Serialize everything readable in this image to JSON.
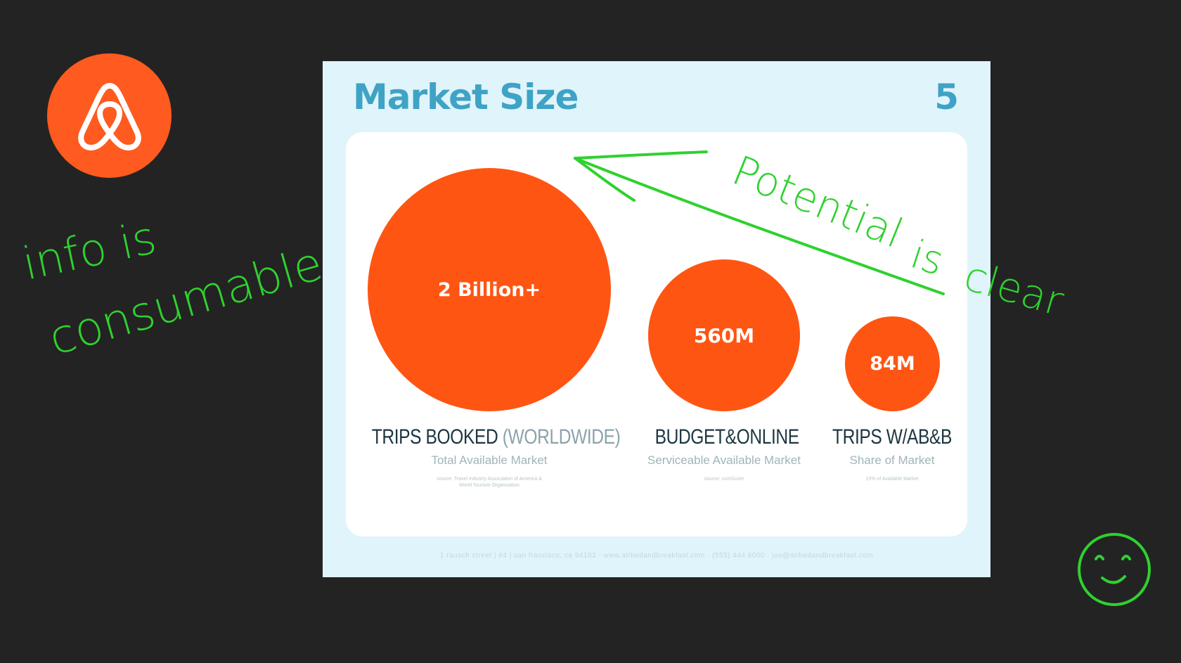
{
  "logo": {
    "icon": "airbnb-belo-icon",
    "color": "#ff5a1f"
  },
  "annotations": {
    "left_note_line1": "info is",
    "left_note_line2": "consumable",
    "arrow_note_word1": "Potential",
    "arrow_note_word2": "is",
    "arrow_note_word3": "clear",
    "smiley": "smiley-face-icon",
    "ink_color": "#2fd12f"
  },
  "slide": {
    "title": "Market Size",
    "number": "5",
    "markets": [
      {
        "value": "2 Billion+",
        "name": "TRIPS BOOKED",
        "name_suffix": "(WORLDWIDE)",
        "subtitle": "Total Available Market",
        "source_line1": "source: Travel Industry Association of America &",
        "source_line2": "World Tourism Organization"
      },
      {
        "value": "560M",
        "name": "BUDGET&ONLINE",
        "subtitle": "Serviceable Available Market",
        "source_line1": "source: comScore"
      },
      {
        "value": "84M",
        "name": "TRIPS W/AB&B",
        "subtitle": "Share of Market",
        "source_line1": "15% of Available Market"
      }
    ],
    "footer": "1 rausch street | #4 | san francisco, ca 94103 · www.airbedandbreakfast.com · (555) 444 6060 · joe@airbedandbreakfast.com",
    "circle_color": "#ff5512",
    "title_color": "#3fa3c5"
  }
}
